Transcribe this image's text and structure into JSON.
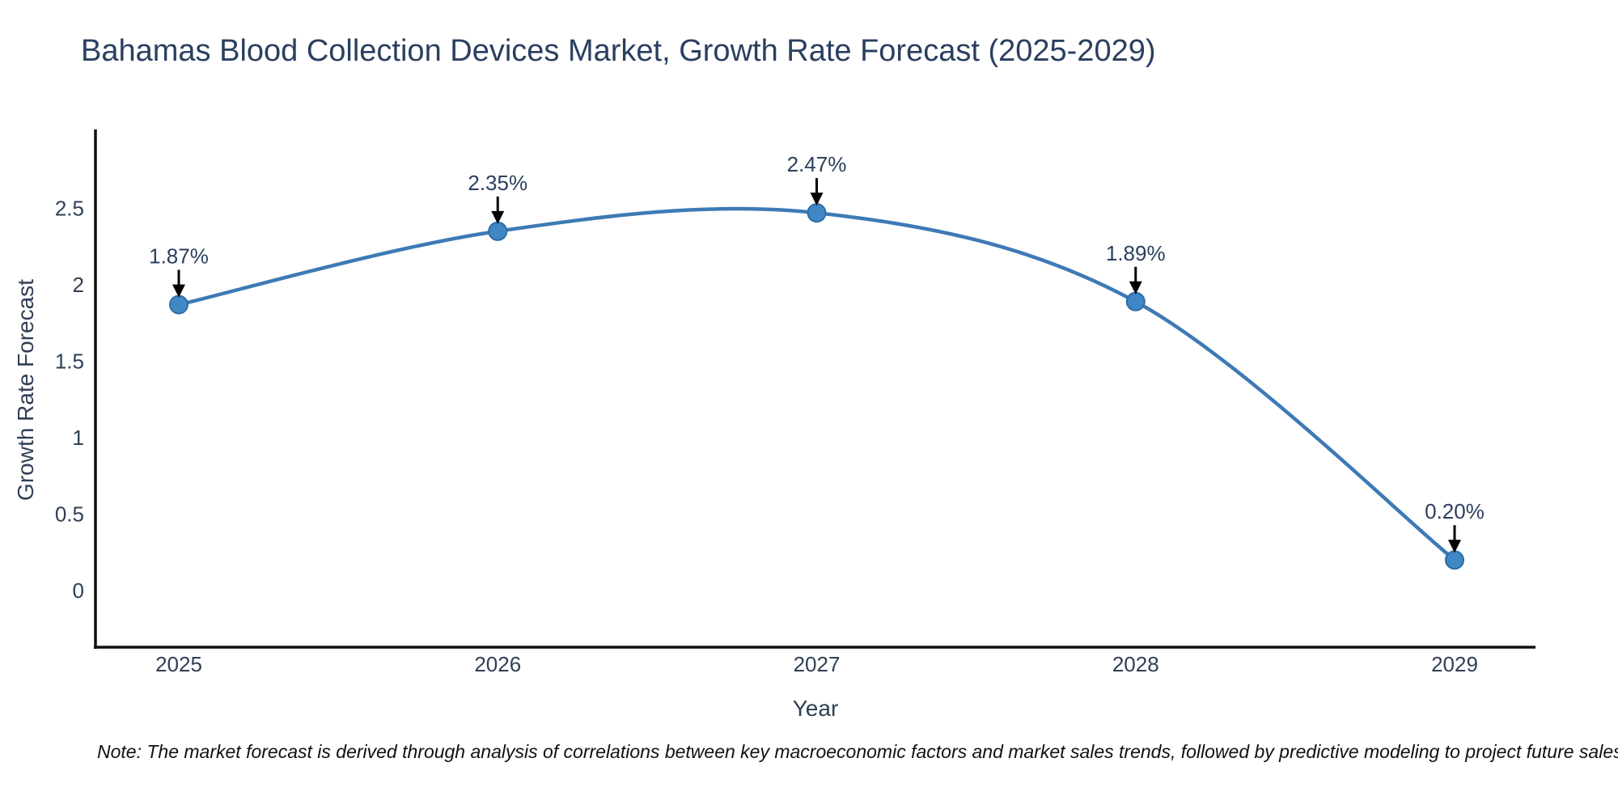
{
  "title": "Bahamas Blood Collection Devices Market, Growth Rate Forecast (2025-2029)",
  "note": "Note: The market forecast is derived through analysis of correlations between key macroeconomic factors and market sales trends, followed by predictive modeling to project future sales",
  "chart_data": {
    "type": "line",
    "title": "Bahamas Blood Collection Devices Market, Growth Rate Forecast (2025-2029)",
    "xlabel": "Year",
    "ylabel": "Growth Rate Forecast",
    "categories": [
      "2025",
      "2026",
      "2027",
      "2028",
      "2029"
    ],
    "series": [
      {
        "name": "Growth Rate Forecast",
        "values": [
          1.87,
          2.35,
          2.47,
          1.89,
          0.2
        ]
      }
    ],
    "point_labels": [
      "1.87%",
      "2.35%",
      "2.47%",
      "1.89%",
      "0.20%"
    ],
    "yticks": [
      "0",
      "0.5",
      "1",
      "1.5",
      "2",
      "2.5"
    ],
    "ytick_values": [
      0,
      0.5,
      1,
      1.5,
      2,
      2.5
    ],
    "ylim": [
      -0.38,
      3.0
    ],
    "line_shape": "spline",
    "grid": false,
    "legend": "none",
    "colors": {
      "line": "#3d7ab5",
      "marker_fill": "#3f87c5",
      "marker_edge": "#2e6da4",
      "axis_line": "#111111",
      "tick_text": "#2f3f55",
      "title_text": "#2a3f5f",
      "annotation_text": "#2a3f5f",
      "annotation_arrow": "#000000",
      "background": "#ffffff"
    }
  }
}
